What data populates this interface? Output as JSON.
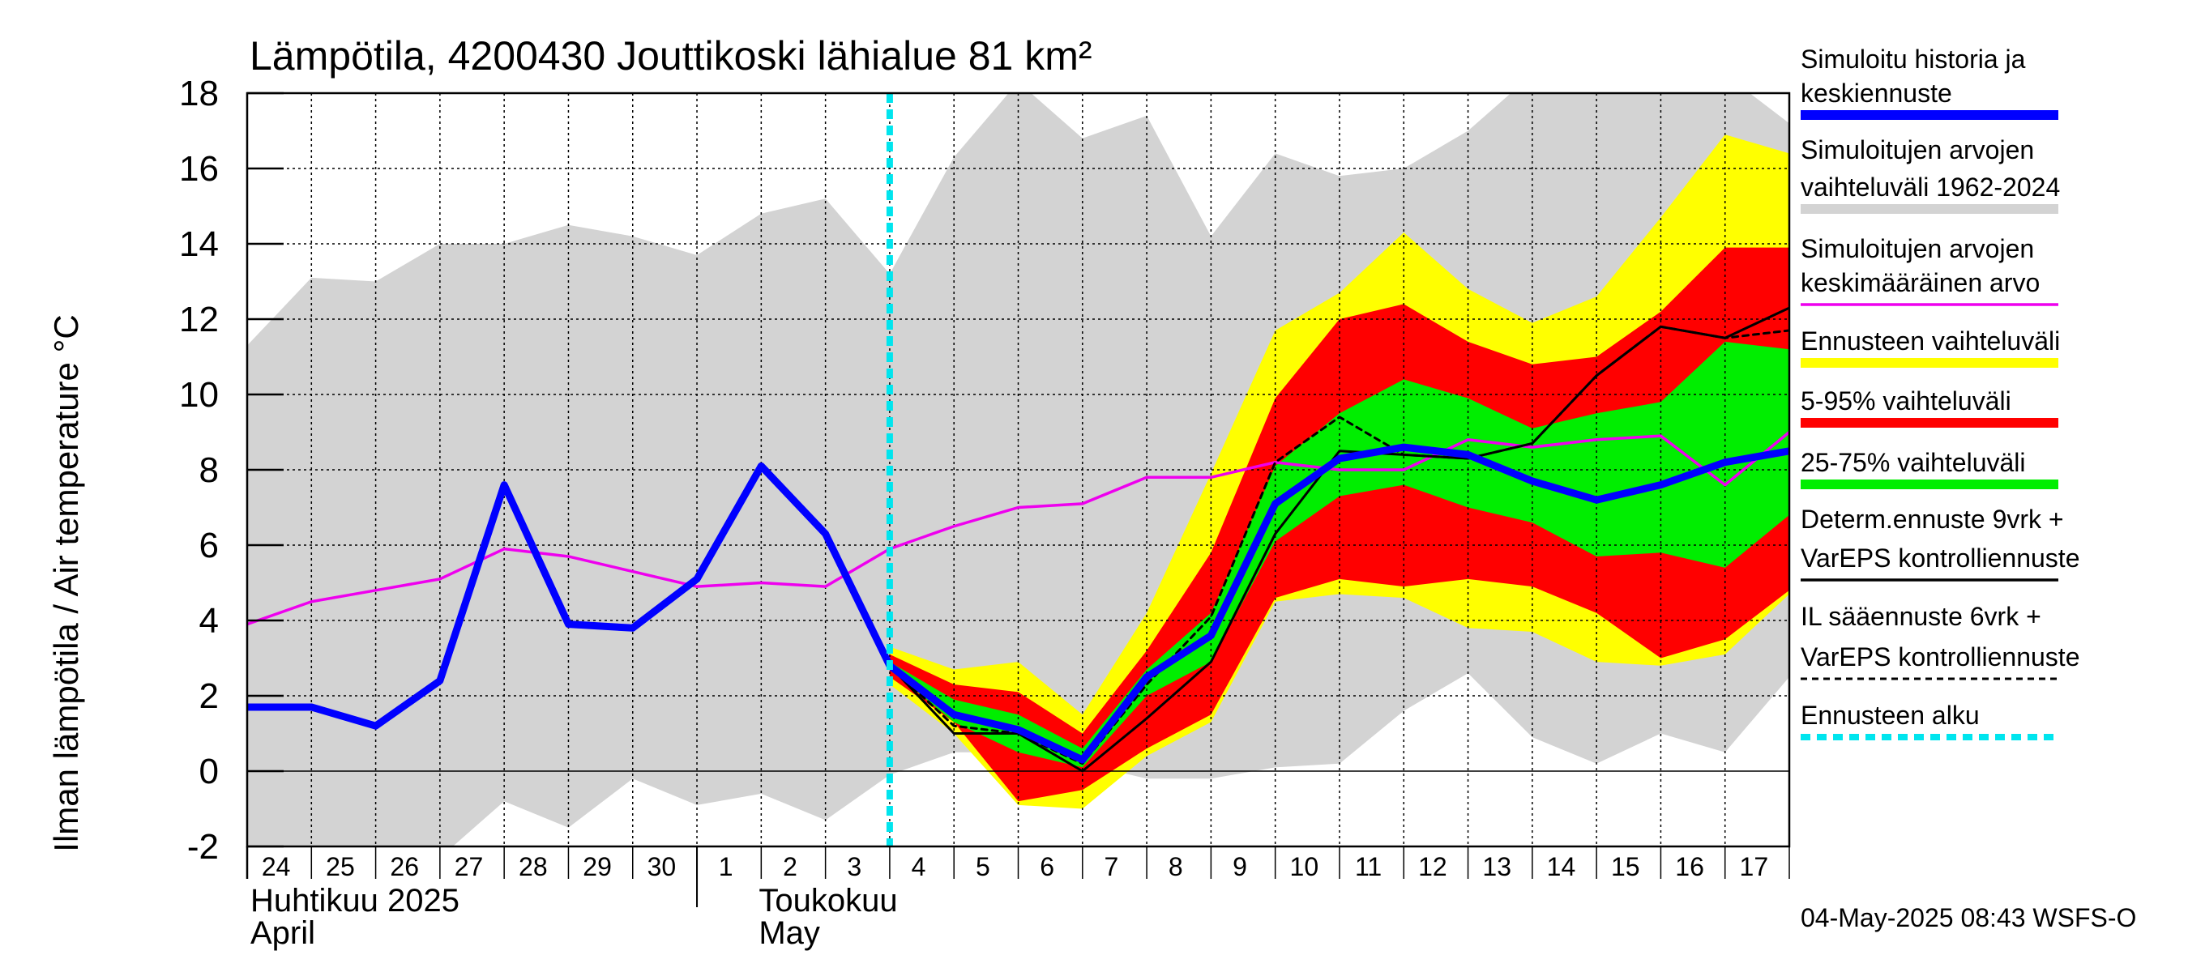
{
  "chart_data": {
    "type": "line",
    "title": "Lämpötila, 4200430 Jouttikoski lähialue 81 km²",
    "ylabel": "Ilman lämpötila / Air temperature    °C",
    "ylim": [
      -2,
      18
    ],
    "yticks": [
      "-2",
      "0",
      "2",
      "4",
      "6",
      "8",
      "10",
      "12",
      "14",
      "16",
      "18"
    ],
    "x_day_labels": [
      "24",
      "25",
      "26",
      "27",
      "28",
      "29",
      "30",
      "1",
      "2",
      "3",
      "4",
      "5",
      "6",
      "7",
      "8",
      "9",
      "10",
      "11",
      "12",
      "13",
      "14",
      "15",
      "16",
      "17"
    ],
    "month_labels": [
      {
        "line1": "Huhtikuu  2025",
        "line2": "April"
      },
      {
        "line1": "Toukokuu",
        "line2": "May"
      }
    ],
    "forecast_start_x": 10,
    "x_range": [
      0,
      24
    ],
    "series": [
      {
        "name": "Simuloitujen arvojen vaihteluväli 1962-2024",
        "kind": "band",
        "color": "#d3d3d3",
        "x": [
          0,
          1,
          2,
          3,
          4,
          5,
          6,
          7,
          8,
          9,
          10,
          11,
          12,
          13,
          14,
          15,
          16,
          17,
          18,
          19,
          20,
          21,
          22,
          23,
          24
        ],
        "upper": [
          11.3,
          13.1,
          13.0,
          14.0,
          14.0,
          14.5,
          14.2,
          13.7,
          14.8,
          15.2,
          13.2,
          16.3,
          18.3,
          16.8,
          17.4,
          14.2,
          16.4,
          15.8,
          16.0,
          17.0,
          18.5,
          18.5,
          18.5,
          18.5,
          17.2
        ],
        "lower": [
          -2.3,
          -2.3,
          -2.3,
          -2.3,
          -0.8,
          -1.5,
          -0.2,
          -0.9,
          -0.6,
          -1.3,
          -0.1,
          0.5,
          0.5,
          0.2,
          -0.2,
          -0.2,
          0.1,
          0.2,
          1.6,
          2.6,
          0.9,
          0.2,
          1.0,
          0.5,
          2.5
        ]
      },
      {
        "name": "Ennusteen vaihteluväli",
        "kind": "band",
        "color": "#ffff00",
        "x": [
          10,
          11,
          12,
          13,
          14,
          15,
          16,
          17,
          18,
          19,
          20,
          21,
          22,
          23,
          24
        ],
        "upper": [
          3.3,
          2.7,
          2.9,
          1.5,
          4.2,
          7.9,
          11.7,
          12.7,
          14.3,
          12.8,
          11.9,
          12.6,
          14.7,
          16.9,
          16.4
        ],
        "lower": [
          2.3,
          1.0,
          -0.9,
          -1.0,
          0.4,
          1.3,
          4.5,
          4.7,
          4.6,
          3.8,
          3.7,
          2.9,
          2.8,
          3.1,
          4.7
        ]
      },
      {
        "name": "5-95% vaihteluväli",
        "kind": "band",
        "color": "#ff0000",
        "x": [
          10,
          11,
          12,
          13,
          14,
          15,
          16,
          17,
          18,
          19,
          20,
          21,
          22,
          23,
          24
        ],
        "upper": [
          3.1,
          2.3,
          2.1,
          1.0,
          3.2,
          5.8,
          9.9,
          12.0,
          12.4,
          11.4,
          10.8,
          11.0,
          12.2,
          13.9,
          13.9
        ],
        "lower": [
          2.5,
          1.3,
          -0.8,
          -0.5,
          0.6,
          1.5,
          4.6,
          5.1,
          4.9,
          5.1,
          4.9,
          4.2,
          3.0,
          3.5,
          4.8
        ]
      },
      {
        "name": "25-75% vaihteluväli",
        "kind": "band",
        "color": "#00ee00",
        "x": [
          10,
          11,
          12,
          13,
          14,
          15,
          16,
          17,
          18,
          19,
          20,
          21,
          22,
          23,
          24
        ],
        "upper": [
          2.9,
          1.9,
          1.5,
          0.6,
          2.7,
          4.2,
          8.1,
          9.5,
          10.4,
          9.9,
          9.1,
          9.5,
          9.8,
          11.4,
          11.2
        ],
        "lower": [
          2.7,
          1.3,
          0.5,
          0.1,
          2.0,
          2.9,
          6.1,
          7.3,
          7.6,
          7.0,
          6.6,
          5.7,
          5.8,
          5.4,
          6.8
        ]
      },
      {
        "name": "Simuloitujen arvojen keskimääräinen arvo",
        "kind": "line",
        "color": "#ee00ee",
        "x": [
          0,
          1,
          2,
          3,
          4,
          5,
          6,
          7,
          8,
          9,
          10,
          11,
          12,
          13,
          14,
          15,
          16,
          17,
          18,
          19,
          20,
          21,
          22,
          23,
          24
        ],
        "values": [
          3.9,
          4.5,
          4.8,
          5.1,
          5.9,
          5.7,
          5.3,
          4.9,
          5.0,
          4.9,
          5.9,
          6.5,
          7.0,
          7.1,
          7.8,
          7.8,
          8.2,
          8.0,
          8.0,
          8.8,
          8.6,
          8.8,
          8.9,
          7.6,
          9.0
        ]
      },
      {
        "name": "IL sääennuste 6vrk + VarEPS kontrolliennuste",
        "kind": "line",
        "color": "#000000",
        "style": "dashed",
        "x": [
          10,
          11,
          12,
          13,
          14,
          15,
          16,
          17,
          18,
          19,
          20,
          21,
          22,
          23,
          24
        ],
        "values": [
          2.8,
          1.2,
          1.0,
          0.2,
          2.3,
          4.1,
          8.2,
          9.4,
          8.4,
          8.3,
          8.7,
          10.5,
          11.8,
          11.5,
          11.7
        ]
      },
      {
        "name": "Determ.ennuste 9vrk + VarEPS kontrolliennuste",
        "kind": "line",
        "color": "#000000",
        "x": [
          9,
          10,
          11,
          12,
          13,
          14,
          15,
          16,
          17,
          18,
          19,
          20,
          21,
          22,
          23,
          24
        ],
        "values": [
          6.3,
          2.8,
          1.0,
          1.0,
          0.0,
          1.4,
          2.9,
          6.3,
          8.5,
          8.4,
          8.3,
          8.7,
          10.5,
          11.8,
          11.5,
          12.3
        ]
      },
      {
        "name": "Simuloitu historia ja keskiennuste",
        "kind": "line",
        "color": "#0000ff",
        "style": "thick",
        "x": [
          0,
          1,
          2,
          3,
          4,
          5,
          6,
          7,
          8,
          9,
          10,
          11,
          12,
          13,
          14,
          15,
          16,
          17,
          18,
          19,
          20,
          21,
          22,
          23,
          24
        ],
        "values": [
          1.7,
          1.7,
          1.2,
          2.4,
          7.6,
          3.9,
          3.8,
          5.1,
          8.1,
          6.3,
          2.8,
          1.5,
          1.1,
          0.3,
          2.5,
          3.6,
          7.1,
          8.3,
          8.6,
          8.4,
          7.7,
          7.2,
          7.6,
          8.2,
          8.5
        ]
      }
    ],
    "legend": [
      {
        "lines": [
          "Simuloitu historia ja",
          "keskiennuste"
        ],
        "color": "#0000ff",
        "style": "solid"
      },
      {
        "lines": [
          "Simuloitujen arvojen",
          "vaihteluväli 1962-2024"
        ],
        "color": "#d3d3d3",
        "style": "solid"
      },
      {
        "lines": [
          "Simuloitujen arvojen",
          "keskimääräinen arvo"
        ],
        "color": "#ee00ee",
        "style": "thin"
      },
      {
        "lines": [
          "Ennusteen vaihteluväli"
        ],
        "color": "#ffff00",
        "style": "solid"
      },
      {
        "lines": [
          "5-95% vaihteluväli"
        ],
        "color": "#ff0000",
        "style": "solid"
      },
      {
        "lines": [
          "25-75% vaihteluväli"
        ],
        "color": "#00ee00",
        "style": "solid"
      },
      {
        "lines": [
          "Determ.ennuste 9vrk +",
          "VarEPS kontrolliennuste"
        ],
        "color": "#000000",
        "style": "thin"
      },
      {
        "lines": [
          "IL sääennuste 6vrk  +",
          "  VarEPS kontrolliennuste"
        ],
        "color": "#000000",
        "style": "dash"
      },
      {
        "lines": [
          "Ennusteen alku"
        ],
        "color": "#00e5ee",
        "style": "dotted"
      }
    ],
    "footer": "04-May-2025 08:43 WSFS-O"
  }
}
